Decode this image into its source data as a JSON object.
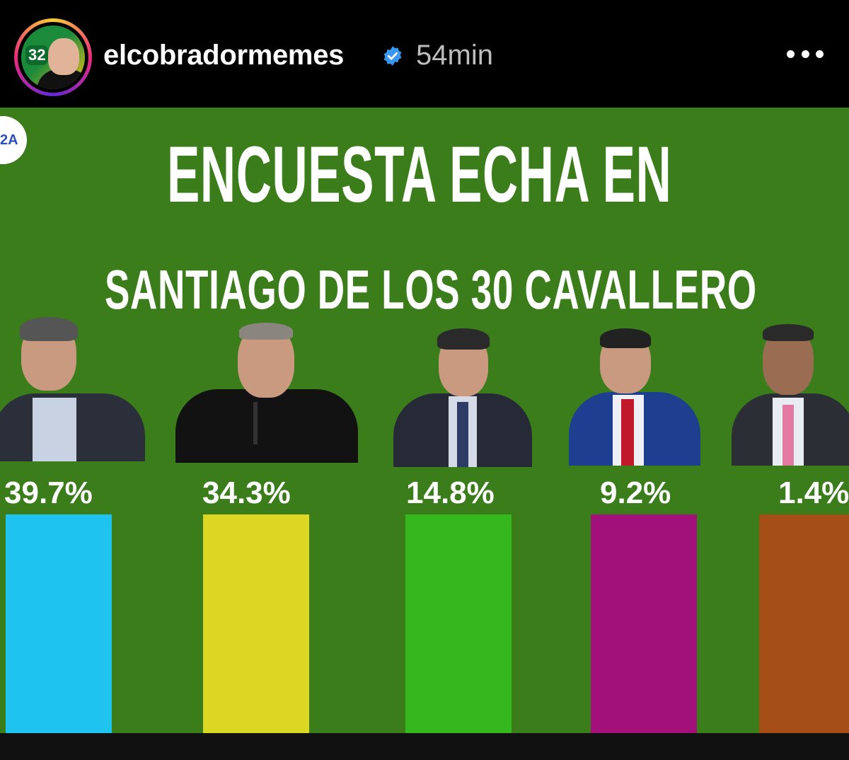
{
  "post": {
    "username": "elcobradormemes",
    "time_ago": "54min",
    "avatar_badge": "32",
    "verified_icon": "verified-badge-icon",
    "more_icon": "more-options-icon"
  },
  "poster": {
    "logo_text": "2A",
    "title_line1": "ENCUESTA ECHA EN",
    "title_line2": "SANTIAGO DE LOS 30 CAVALLERO"
  },
  "chart_data": {
    "type": "bar",
    "categories": [
      "",
      "",
      "",
      "",
      ""
    ],
    "values": [
      39.7,
      34.3,
      14.8,
      9.2,
      1.4
    ],
    "labels": [
      "39.7%",
      "34.3%",
      "14.8%",
      "9.2%",
      "1.4%"
    ],
    "colors": [
      "#1ec4ef",
      "#dcd723",
      "#35b81d",
      "#a2107a",
      "#a54e15"
    ],
    "title": "ENCUESTA ECHA EN SANTIAGO DE LOS 30 CAVALLERO",
    "xlabel": "",
    "ylabel": ""
  }
}
